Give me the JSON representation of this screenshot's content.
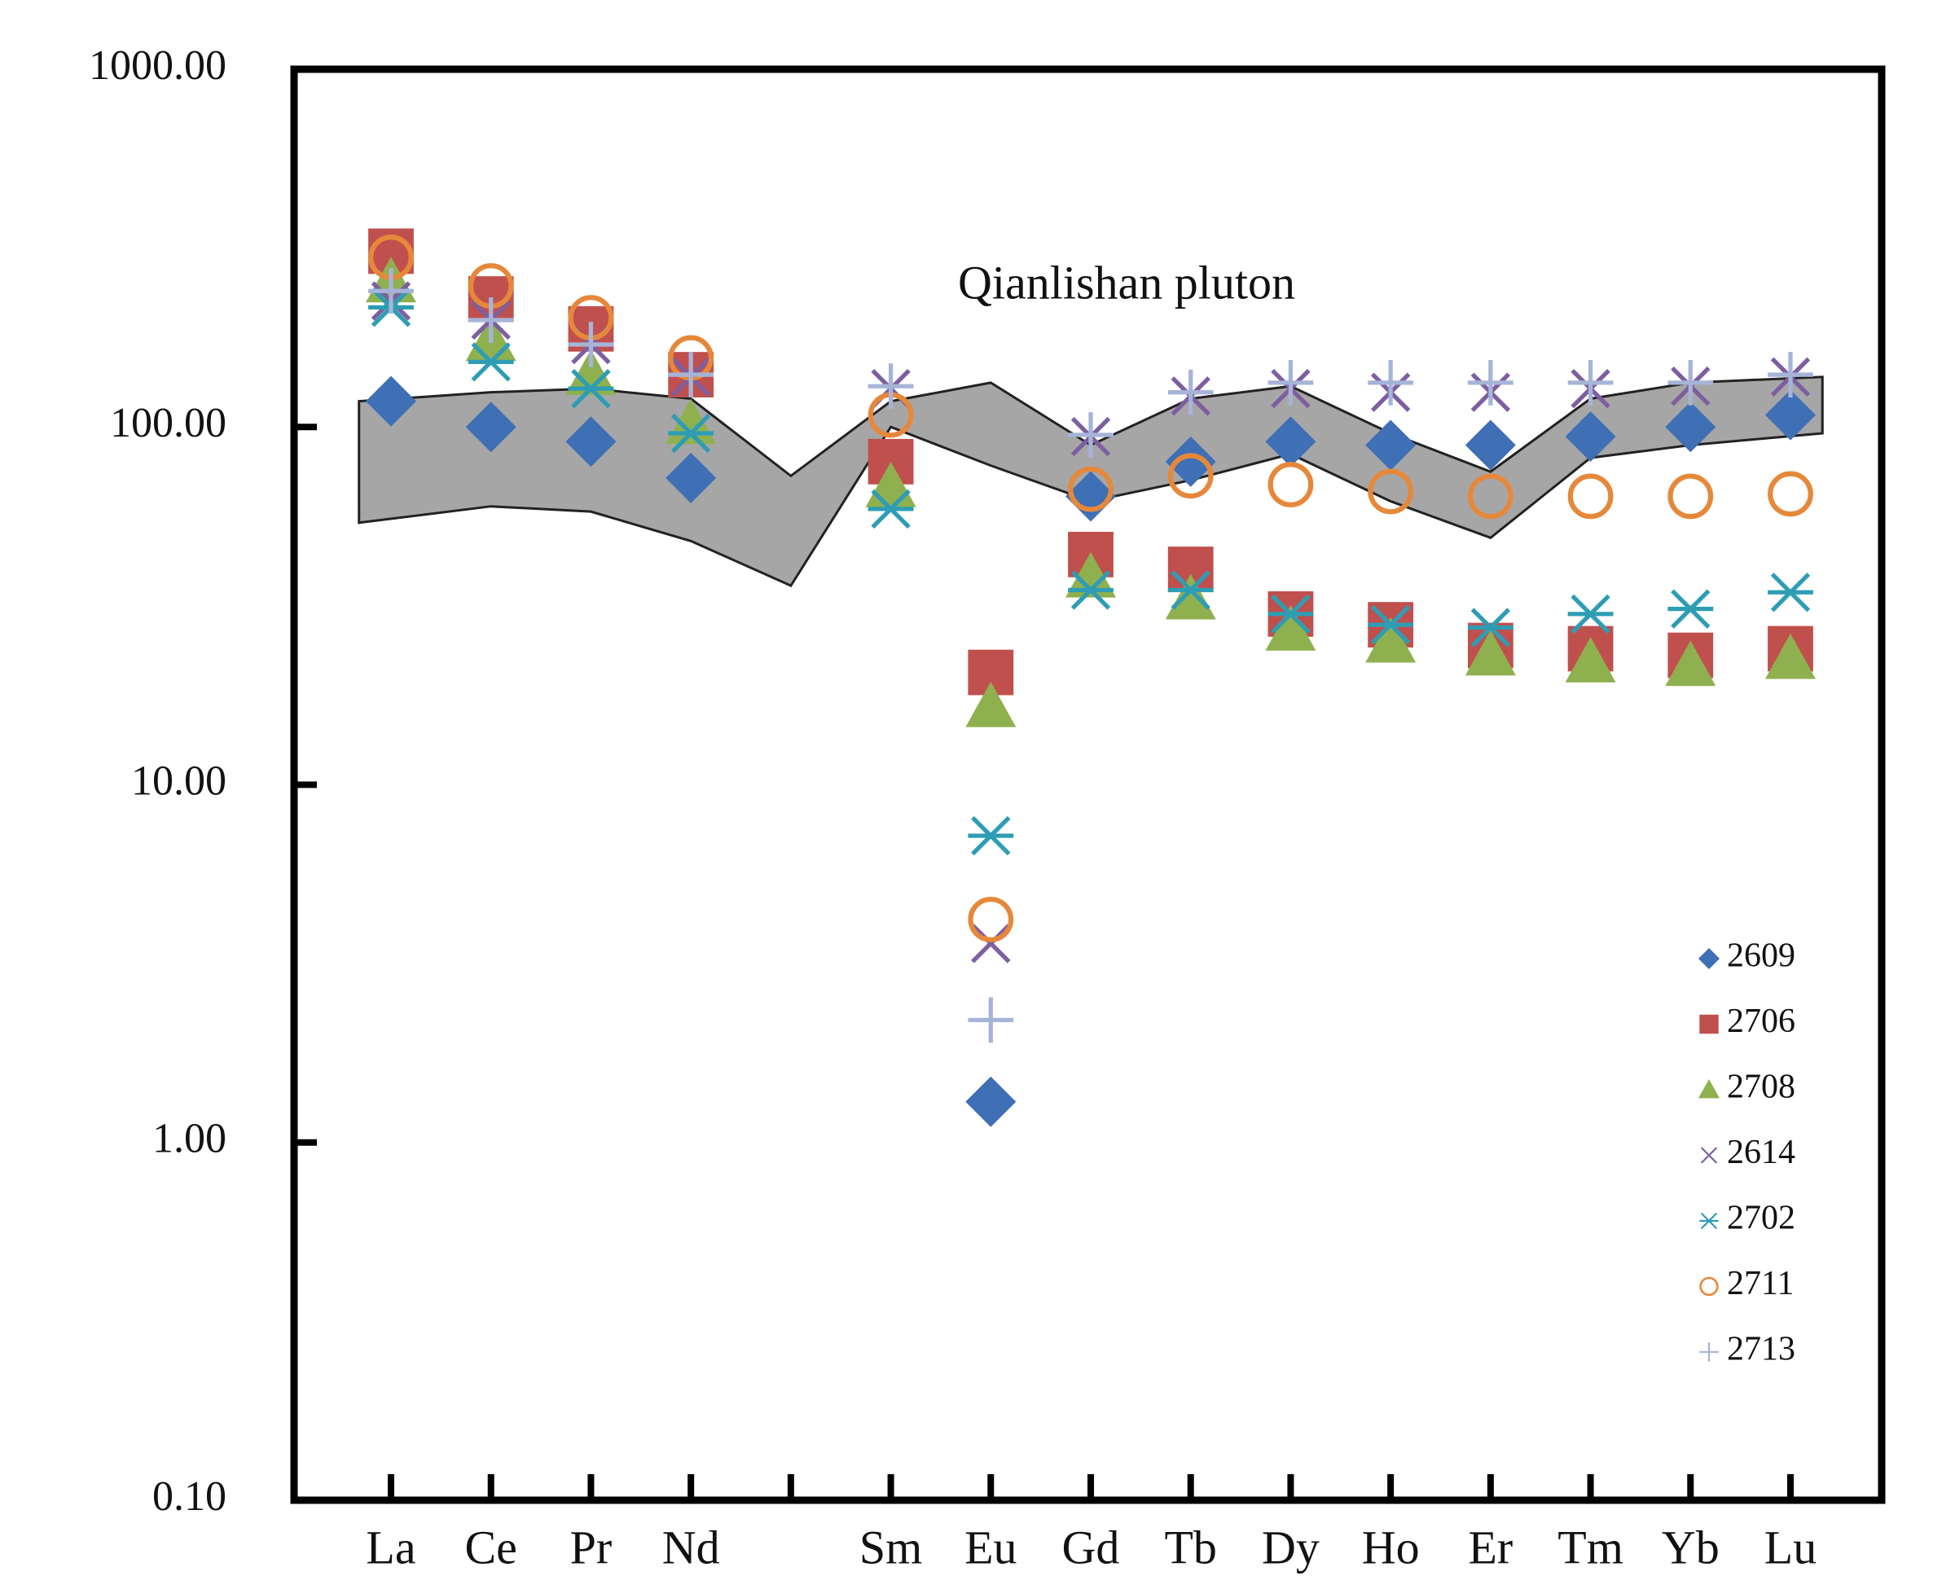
{
  "chart_data": {
    "type": "scatter",
    "annotation": "Qianlishan pluton",
    "categories": [
      "La",
      "Ce",
      "Pr",
      "Nd",
      null,
      "Sm",
      "Eu",
      "Gd",
      "Tb",
      "Dy",
      "Ho",
      "Er",
      "Tm",
      "Yb",
      "Lu"
    ],
    "log_scale": true,
    "ylim": [
      0.1,
      1000
    ],
    "yticks": [
      {
        "value": 1000,
        "label": "1000.00"
      },
      {
        "value": 100,
        "label": "100.00"
      },
      {
        "value": 10,
        "label": "10.00"
      },
      {
        "value": 1,
        "label": "1.00"
      },
      {
        "value": 0.1,
        "label": "0.10"
      }
    ],
    "band": {
      "color": "#a6a6a6",
      "upper": [
        118,
        125,
        128,
        120,
        73,
        118,
        133,
        89,
        120,
        130,
        96,
        75,
        120,
        133,
        138
      ],
      "lower": [
        54,
        60,
        58,
        48,
        36,
        100,
        78,
        62,
        71,
        84,
        62,
        49,
        82,
        89,
        96
      ]
    },
    "legend": "right-bottom",
    "series": [
      {
        "name": "2609",
        "color": "#3f6fb5",
        "marker": "diamond",
        "values": [
          118,
          100,
          91,
          72,
          null,
          null,
          1.3,
          64,
          80,
          91,
          89,
          89,
          94,
          100,
          108
        ]
      },
      {
        "name": "2706",
        "color": "#c0504d",
        "marker": "square",
        "values": [
          310,
          228,
          188,
          140,
          null,
          80,
          20.6,
          44,
          40,
          30,
          28,
          24.5,
          24,
          23,
          24
        ]
      },
      {
        "name": "2708",
        "color": "#8fb04f",
        "marker": "triangle",
        "values": [
          254,
          174,
          140,
          102,
          null,
          68,
          16.5,
          38,
          33,
          27,
          25,
          23,
          22,
          21.5,
          22.5
        ]
      },
      {
        "name": "2614",
        "color": "#7d5fa0",
        "marker": "x",
        "values": [
          225,
          199,
          170,
          138,
          null,
          128,
          3.6,
          94,
          122,
          128,
          125,
          125,
          128,
          130,
          138
        ]
      },
      {
        "name": "2702",
        "color": "#2e9db4",
        "marker": "asterisk",
        "values": [
          216,
          152,
          128,
          96,
          null,
          59,
          7.2,
          35,
          35,
          30,
          28,
          27.5,
          30,
          31,
          34.5
        ]
      },
      {
        "name": "2711",
        "color": "#e6883a",
        "marker": "circle",
        "values": [
          298,
          248,
          202,
          156,
          null,
          108,
          4.2,
          67,
          73,
          69,
          66,
          64,
          64,
          64,
          65
        ]
      },
      {
        "name": "2713",
        "color": "#a6b4d8",
        "marker": "plus",
        "values": [
          240,
          199,
          170,
          140,
          null,
          130,
          2.2,
          95,
          125,
          133,
          133,
          133,
          133,
          133,
          140
        ]
      }
    ]
  }
}
